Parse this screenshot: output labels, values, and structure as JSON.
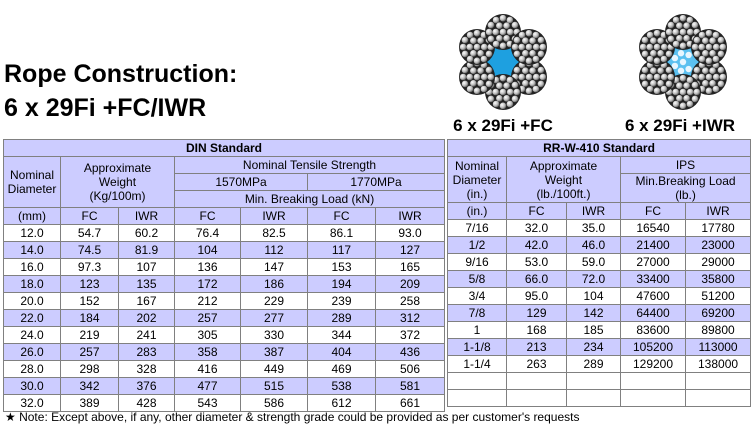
{
  "title": {
    "line1": "Rope Construction:",
    "line2": "6 x 29Fi +FC/IWR"
  },
  "images": [
    {
      "caption": "6 x 29Fi +FC"
    },
    {
      "caption": "6 x 29Fi +IWR"
    }
  ],
  "din": {
    "title": "DIN Standard",
    "head": {
      "diameter": [
        "Nominal",
        "Diameter"
      ],
      "weight": [
        "Approximate",
        "Weight",
        "(Kg/100m)"
      ],
      "strength": "Nominal Tensile Strength",
      "grade1": "1570MPa",
      "grade2": "1770MPa",
      "load": "Min. Breaking Load (kN)"
    },
    "units": [
      "(mm)",
      "FC",
      "IWR",
      "FC",
      "IWR",
      "FC",
      "IWR"
    ],
    "rows": [
      [
        "12.0",
        "54.7",
        "60.2",
        "76.4",
        "82.5",
        "86.1",
        "93.0"
      ],
      [
        "14.0",
        "74.5",
        "81.9",
        "104",
        "112",
        "117",
        "127"
      ],
      [
        "16.0",
        "97.3",
        "107",
        "136",
        "147",
        "153",
        "165"
      ],
      [
        "18.0",
        "123",
        "135",
        "172",
        "186",
        "194",
        "209"
      ],
      [
        "20.0",
        "152",
        "167",
        "212",
        "229",
        "239",
        "258"
      ],
      [
        "22.0",
        "184",
        "202",
        "257",
        "277",
        "289",
        "312"
      ],
      [
        "24.0",
        "219",
        "241",
        "305",
        "330",
        "344",
        "372"
      ],
      [
        "26.0",
        "257",
        "283",
        "358",
        "387",
        "404",
        "436"
      ],
      [
        "28.0",
        "298",
        "328",
        "416",
        "449",
        "469",
        "506"
      ],
      [
        "30.0",
        "342",
        "376",
        "477",
        "515",
        "538",
        "581"
      ],
      [
        "32.0",
        "389",
        "428",
        "543",
        "586",
        "612",
        "661"
      ]
    ]
  },
  "rr": {
    "title": "RR-W-410 Standard",
    "head": {
      "diameter": [
        "Nominal",
        "Diameter",
        "(in.)"
      ],
      "weight": [
        "Approximate",
        "Weight",
        "(lb./100ft.)"
      ],
      "grade": "IPS",
      "load": [
        "Min.Breaking Load",
        "(lb.)"
      ]
    },
    "units": [
      "(in.)",
      "FC",
      "IWR",
      "FC",
      "IWR"
    ],
    "rows": [
      [
        "7/16",
        "32.0",
        "35.0",
        "16540",
        "17780"
      ],
      [
        "1/2",
        "42.0",
        "46.0",
        "21400",
        "23000"
      ],
      [
        "9/16",
        "53.0",
        "59.0",
        "27000",
        "29000"
      ],
      [
        "5/8",
        "66.0",
        "72.0",
        "33400",
        "35800"
      ],
      [
        "3/4",
        "95.0",
        "104",
        "47600",
        "51200"
      ],
      [
        "7/8",
        "129",
        "142",
        "64400",
        "69200"
      ],
      [
        "1",
        "168",
        "185",
        "83600",
        "89800"
      ],
      [
        "1-1/8",
        "213",
        "234",
        "105200",
        "113000"
      ],
      [
        "1-1/4",
        "263",
        "289",
        "129200",
        "138000"
      ]
    ]
  },
  "note": "★ Note: Except above, if any, other diameter & strength grade could be provided as per customer's requests"
}
